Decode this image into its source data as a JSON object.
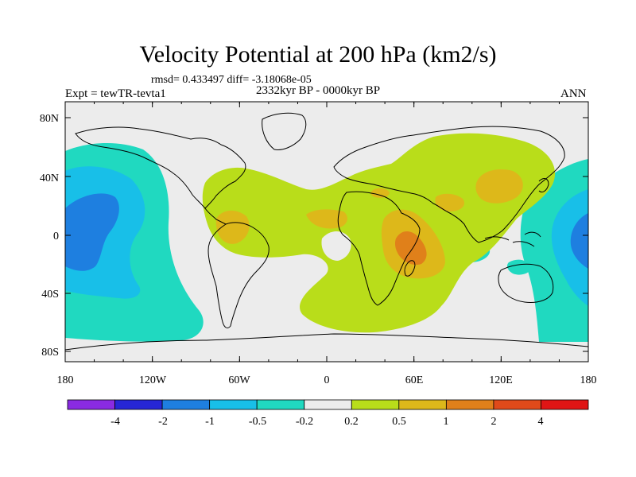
{
  "title": "Velocity Potential at 200 hPa (km2/s)",
  "stats_line": "rmsd= 0.433497 diff= -3.18068e-05",
  "experiment": "Expt = tewTR-tevta1",
  "period": "2332kyr BP - 0000kyr BP",
  "season": "ANN",
  "y_axis_labels": [
    "80N",
    "40N",
    "0",
    "40S",
    "80S"
  ],
  "x_axis_labels": [
    "180",
    "120W",
    "60W",
    "0",
    "60E",
    "120E",
    "180"
  ],
  "colorbar": {
    "labels": [
      "-4",
      "-2",
      "-1",
      "-0.5",
      "-0.2",
      "0.2",
      "0.5",
      "1",
      "2",
      "4"
    ],
    "colors": [
      "#8a2be2",
      "#2626d6",
      "#1e7fe0",
      "#18bfe8",
      "#20d9c0",
      "#ececec",
      "#b9dd1a",
      "#ddb81a",
      "#e0801a",
      "#e04a1a",
      "#e01515"
    ]
  },
  "fill_colors": {
    "neutral": "#ececec",
    "neg_weak": "#20d9c0",
    "neg_mid": "#18bfe8",
    "neg_strong": "#1e7fe0",
    "pos_weak": "#b9dd1a",
    "pos_mid": "#ddb81a",
    "pos_strong": "#e0801a"
  }
}
